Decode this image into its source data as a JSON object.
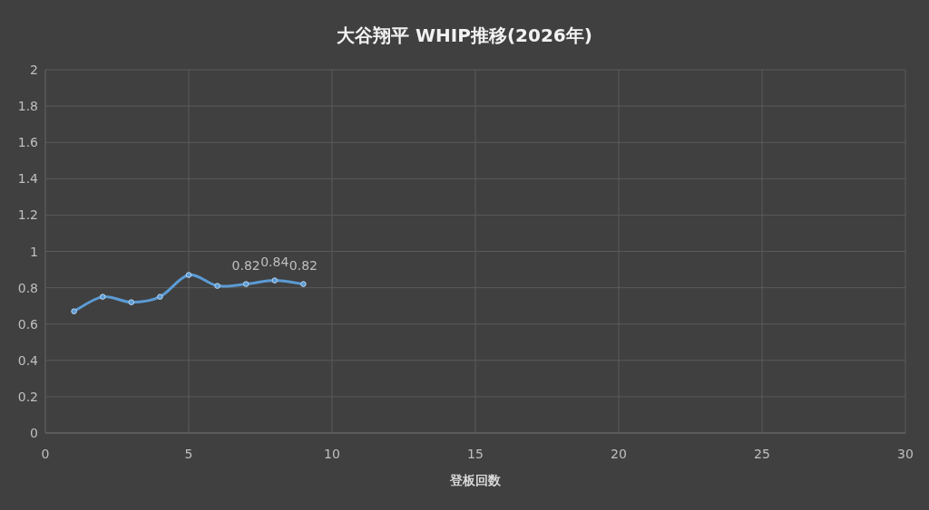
{
  "chart_data": {
    "type": "line",
    "title": "大谷翔平  WHIP推移(2026年)",
    "xlabel": "登板回数",
    "x": [
      1,
      2,
      3,
      4,
      5,
      6,
      7,
      8,
      9
    ],
    "series": [
      {
        "color": "#5b9bd5",
        "values": [
          0.67,
          0.75,
          0.72,
          0.75,
          0.87,
          0.81,
          0.82,
          0.84,
          0.82
        ],
        "value_labels": [
          null,
          null,
          null,
          null,
          null,
          null,
          "0.82",
          "0.84",
          "0.82"
        ]
      }
    ],
    "xlim": [
      0,
      30
    ],
    "xticks": [
      0,
      5,
      10,
      15,
      20,
      25,
      30
    ],
    "ylim": [
      0,
      2
    ],
    "yticks": [
      0,
      0.2,
      0.4,
      0.6,
      0.8,
      1,
      1.2,
      1.4,
      1.6,
      1.8,
      2
    ],
    "grid": true,
    "marker": "circle",
    "line_style": "solid"
  }
}
